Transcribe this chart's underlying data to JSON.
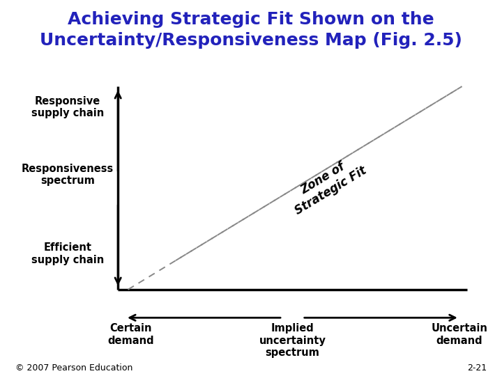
{
  "title_line1": "Achieving Strategic Fit Shown on the",
  "title_line2": "Uncertainty/Responsiveness Map (Fig. 2.5)",
  "title_color": "#2222BB",
  "title_fontsize": 18,
  "title_bar_color": "#4CAF7D",
  "bg_color": "#FFFFFF",
  "axis_label_top": "Responsive\nsupply chain",
  "axis_label_mid": "Responsiveness\nspectrum",
  "axis_label_bot": "Efficient\nsupply chain",
  "x_label_left": "Certain\ndemand",
  "x_label_mid": "Implied\nuncertainty\nspectrum",
  "x_label_right": "Uncertain\ndemand",
  "zone_label": "Zone of\nStrategic Fit",
  "arrow_color": "#000000",
  "line_color": "#000000",
  "dashed_color": "#888888",
  "copyright": "© 2007 Pearson Education",
  "page_num": "2-21",
  "footer_fontsize": 9,
  "label_fontsize": 10.5
}
